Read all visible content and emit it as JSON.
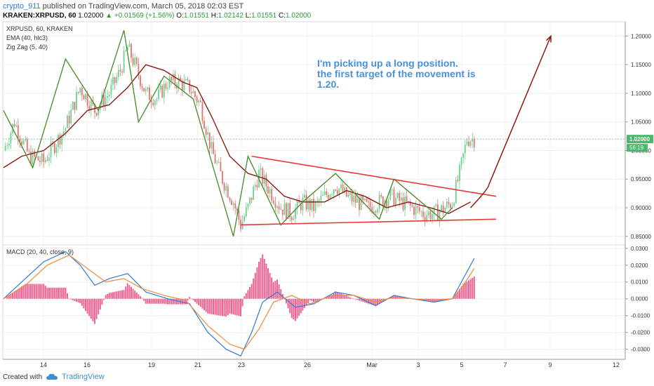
{
  "header": {
    "author": "crypto_911",
    "published": "published on TradingView.com, March 05, 2018 02:03 EST"
  },
  "ticker": {
    "symbol": "KRAKEN:XRPUSD, 60",
    "last": "1.02000",
    "change": "+0.01569 (+1.56%)",
    "open_label": "O:",
    "open": "1.01551",
    "high_label": "H:",
    "high": "1.02142",
    "low_label": "L:",
    "low": "1.01551",
    "close_label": "C:",
    "close": "1.02000"
  },
  "price_pane": {
    "symbol_label": "XRPUSD, 60, KRAKEN",
    "ema_label": "EMA (40, hlc3)",
    "zigzag_label": "Zig Zag (5, 40)",
    "price_tag": "1.02000",
    "time_tag": "56:19",
    "annotation_lines": [
      "I'm picking up a long position.",
      "the first target of the movement is",
      "1.20."
    ]
  },
  "macd_pane": {
    "label": "MACD (20, 40, close, 9)"
  },
  "footer": {
    "created_with": "Created with",
    "brand": "TradingView"
  },
  "chart_data": [
    {
      "type": "line",
      "subtype": "candlestick",
      "ylim": [
        0.835,
        1.225
      ],
      "yticks": [
        0.85,
        0.9,
        0.95,
        1.0,
        1.05,
        1.1,
        1.15,
        1.2
      ],
      "ytick_labels": [
        "0.85000",
        "0.90000",
        "0.95000",
        "1.00000",
        "1.05000",
        "1.10000",
        "1.15000",
        "1.20000"
      ],
      "xtick_labels": [
        "14",
        "16",
        "19",
        "21",
        "23",
        "26",
        "Mar",
        "3",
        "5",
        "7",
        "9",
        "12"
      ],
      "grid": true,
      "current_price": 1.02,
      "close_path": [
        [
          0,
          1.0
        ],
        [
          6,
          1.05
        ],
        [
          14,
          0.99
        ],
        [
          22,
          0.98
        ],
        [
          34,
          1.04
        ],
        [
          42,
          1.11
        ],
        [
          50,
          1.07
        ],
        [
          58,
          1.1
        ],
        [
          64,
          1.14
        ],
        [
          68,
          1.18
        ],
        [
          72,
          1.15
        ],
        [
          78,
          1.1
        ],
        [
          84,
          1.09
        ],
        [
          90,
          1.12
        ],
        [
          96,
          1.12
        ],
        [
          102,
          1.11
        ],
        [
          108,
          1.08
        ],
        [
          114,
          1.0
        ],
        [
          120,
          0.95
        ],
        [
          126,
          0.91
        ],
        [
          130,
          0.87
        ],
        [
          134,
          0.9
        ],
        [
          140,
          0.96
        ],
        [
          146,
          0.93
        ],
        [
          152,
          0.9
        ],
        [
          158,
          0.89
        ],
        [
          164,
          0.91
        ],
        [
          170,
          0.9
        ],
        [
          176,
          0.92
        ],
        [
          182,
          0.94
        ],
        [
          188,
          0.92
        ],
        [
          194,
          0.91
        ],
        [
          200,
          0.9
        ],
        [
          206,
          0.91
        ],
        [
          212,
          0.92
        ],
        [
          218,
          0.91
        ],
        [
          224,
          0.9
        ],
        [
          230,
          0.89
        ],
        [
          236,
          0.89
        ],
        [
          242,
          0.9
        ],
        [
          246,
          0.91
        ],
        [
          250,
          0.96
        ],
        [
          254,
          1.02
        ],
        [
          258,
          1.02
        ]
      ],
      "series": [
        {
          "name": "EMA (40, hlc3)",
          "color": "#8b1a10",
          "points": [
            [
              0,
              0.97
            ],
            [
              10,
              0.99
            ],
            [
              22,
              1.0
            ],
            [
              34,
              1.03
            ],
            [
              46,
              1.07
            ],
            [
              58,
              1.08
            ],
            [
              68,
              1.11
            ],
            [
              78,
              1.15
            ],
            [
              88,
              1.14
            ],
            [
              98,
              1.12
            ],
            [
              106,
              1.11
            ],
            [
              114,
              1.06
            ],
            [
              124,
              0.99
            ],
            [
              134,
              0.96
            ],
            [
              144,
              0.95
            ],
            [
              154,
              0.92
            ],
            [
              164,
              0.91
            ],
            [
              176,
              0.91
            ],
            [
              188,
              0.93
            ],
            [
              198,
              0.92
            ],
            [
              210,
              0.9
            ],
            [
              222,
              0.91
            ],
            [
              234,
              0.9
            ],
            [
              244,
              0.89
            ],
            [
              250,
              0.9
            ],
            [
              256,
              0.91
            ]
          ]
        },
        {
          "name": "Zig Zag (5, 40)",
          "color": "#4f8f2f",
          "points": [
            [
              0,
              1.07
            ],
            [
              16,
              0.97
            ],
            [
              34,
              1.16
            ],
            [
              52,
              1.07
            ],
            [
              66,
              1.21
            ],
            [
              74,
              1.05
            ],
            [
              88,
              1.13
            ],
            [
              104,
              1.09
            ],
            [
              126,
              0.85
            ],
            [
              134,
              0.99
            ],
            [
              152,
              0.87
            ],
            [
              164,
              0.91
            ],
            [
              182,
              0.96
            ],
            [
              206,
              0.88
            ],
            [
              214,
              0.95
            ],
            [
              240,
              0.88
            ],
            [
              246,
              0.9
            ]
          ]
        }
      ],
      "annotations": [
        {
          "type": "trendline",
          "color": "#e53935",
          "from": [
            136,
            0.99
          ],
          "to": [
            270,
            0.92
          ]
        },
        {
          "type": "trendline",
          "color": "#e53935",
          "from": [
            130,
            0.87
          ],
          "to": [
            270,
            0.88
          ]
        },
        {
          "type": "projection-arrow",
          "color": "#8b1a10",
          "from": [
            256,
            0.9
          ],
          "via": [
            266,
            0.94
          ],
          "to": [
            300,
            1.2
          ]
        }
      ]
    },
    {
      "type": "bar",
      "ylim": [
        -0.036,
        0.032
      ],
      "yticks": [
        0.03,
        0.02,
        0.01,
        0.0,
        -0.01,
        -0.02,
        -0.03
      ],
      "ytick_labels": [
        "0.0300",
        "0.0200",
        "0.0100",
        "0.0000",
        "-0.0100",
        "-0.0200",
        "-0.0300"
      ],
      "grid": true,
      "series": [
        {
          "name": "MACD",
          "color": "#2f7bd2",
          "points": [
            [
              0,
              0.0
            ],
            [
              10,
              0.01
            ],
            [
              22,
              0.022
            ],
            [
              34,
              0.028
            ],
            [
              42,
              0.02
            ],
            [
              50,
              0.008
            ],
            [
              58,
              0.012
            ],
            [
              68,
              0.015
            ],
            [
              78,
              0.004
            ],
            [
              90,
              0.0
            ],
            [
              102,
              -0.003
            ],
            [
              112,
              -0.02
            ],
            [
              122,
              -0.03
            ],
            [
              130,
              -0.034
            ],
            [
              136,
              -0.02
            ],
            [
              142,
              -0.002
            ],
            [
              150,
              0.004
            ],
            [
              160,
              -0.005
            ],
            [
              170,
              -0.003
            ],
            [
              182,
              0.004
            ],
            [
              192,
              0.002
            ],
            [
              204,
              -0.004
            ],
            [
              214,
              0.002
            ],
            [
              224,
              0.0
            ],
            [
              236,
              -0.002
            ],
            [
              246,
              0.0
            ],
            [
              252,
              0.012
            ],
            [
              258,
              0.024
            ]
          ]
        },
        {
          "name": "Signal",
          "color": "#f08a3c",
          "points": [
            [
              0,
              0.0
            ],
            [
              12,
              0.008
            ],
            [
              24,
              0.02
            ],
            [
              36,
              0.026
            ],
            [
              46,
              0.018
            ],
            [
              56,
              0.01
            ],
            [
              66,
              0.012
            ],
            [
              76,
              0.006
            ],
            [
              88,
              0.002
            ],
            [
              100,
              -0.001
            ],
            [
              112,
              -0.016
            ],
            [
              124,
              -0.027
            ],
            [
              132,
              -0.03
            ],
            [
              140,
              -0.018
            ],
            [
              148,
              -0.002
            ],
            [
              158,
              0.002
            ],
            [
              168,
              -0.003
            ],
            [
              180,
              0.002
            ],
            [
              192,
              0.002
            ],
            [
              204,
              -0.002
            ],
            [
              214,
              0.001
            ],
            [
              224,
              0.0
            ],
            [
              236,
              -0.001
            ],
            [
              246,
              0.0
            ],
            [
              252,
              0.008
            ],
            [
              258,
              0.018
            ]
          ]
        }
      ],
      "histogram_color": "#f06292"
    }
  ]
}
